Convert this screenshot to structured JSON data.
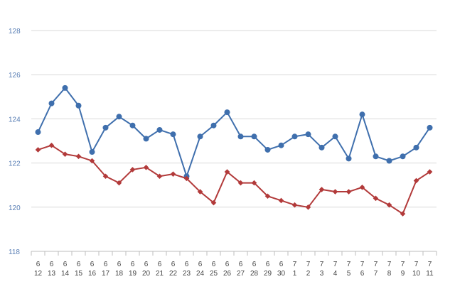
{
  "chart_data": {
    "type": "line",
    "title": "",
    "xlabel": "",
    "ylabel": "",
    "ylim": [
      118,
      128
    ],
    "yticks": [
      118,
      120,
      122,
      124,
      126,
      128
    ],
    "grid": true,
    "categories": [
      {
        "month": "6",
        "day": "12"
      },
      {
        "month": "6",
        "day": "13"
      },
      {
        "month": "6",
        "day": "14"
      },
      {
        "month": "6",
        "day": "15"
      },
      {
        "month": "6",
        "day": "16"
      },
      {
        "month": "6",
        "day": "17"
      },
      {
        "month": "6",
        "day": "18"
      },
      {
        "month": "6",
        "day": "19"
      },
      {
        "month": "6",
        "day": "20"
      },
      {
        "month": "6",
        "day": "21"
      },
      {
        "month": "6",
        "day": "22"
      },
      {
        "month": "6",
        "day": "23"
      },
      {
        "month": "6",
        "day": "24"
      },
      {
        "month": "6",
        "day": "25"
      },
      {
        "month": "6",
        "day": "26"
      },
      {
        "month": "6",
        "day": "27"
      },
      {
        "month": "6",
        "day": "28"
      },
      {
        "month": "6",
        "day": "29"
      },
      {
        "month": "6",
        "day": "30"
      },
      {
        "month": "7",
        "day": "1"
      },
      {
        "month": "7",
        "day": "2"
      },
      {
        "month": "7",
        "day": "3"
      },
      {
        "month": "7",
        "day": "4"
      },
      {
        "month": "7",
        "day": "5"
      },
      {
        "month": "7",
        "day": "6"
      },
      {
        "month": "7",
        "day": "7"
      },
      {
        "month": "7",
        "day": "8"
      },
      {
        "month": "7",
        "day": "9"
      },
      {
        "month": "7",
        "day": "10"
      },
      {
        "month": "7",
        "day": "11"
      }
    ],
    "series": [
      {
        "color": "#3f6fad",
        "marker": "circle",
        "values": [
          123.4,
          124.7,
          125.4,
          124.6,
          122.5,
          123.6,
          124.1,
          123.7,
          123.1,
          123.5,
          123.3,
          121.4,
          123.2,
          123.7,
          124.3,
          123.2,
          123.2,
          122.6,
          122.8,
          123.2,
          123.3,
          122.7,
          123.2,
          122.2,
          124.2,
          122.3,
          122.1,
          122.3,
          122.7,
          123.6
        ]
      },
      {
        "color": "#b23a3a",
        "marker": "diamond",
        "values": [
          122.6,
          122.8,
          122.4,
          122.3,
          122.1,
          121.4,
          121.1,
          121.7,
          121.8,
          121.4,
          121.5,
          121.3,
          120.7,
          120.2,
          121.6,
          121.1,
          121.1,
          120.5,
          120.3,
          120.1,
          120.0,
          120.8,
          120.7,
          120.7,
          120.9,
          120.4,
          120.1,
          119.7,
          121.2,
          121.6
        ]
      }
    ]
  }
}
